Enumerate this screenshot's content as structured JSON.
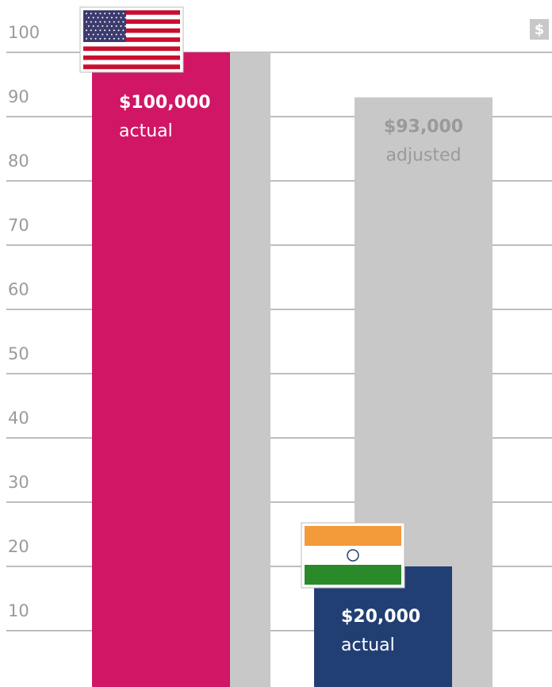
{
  "chart_data": {
    "type": "bar",
    "icon": "$",
    "categories": [
      null,
      null
    ],
    "series": [
      {
        "name": "adjusted",
        "color": "#c8c8c8",
        "values": [
          100,
          93
        ],
        "value_labels": [
          null,
          "$93,000"
        ],
        "label_color": "#9a9a9a"
      },
      {
        "name": "actual",
        "colors": [
          "#d01664",
          "#223f74"
        ],
        "values": [
          100,
          20
        ],
        "value_labels": [
          "$100,000",
          "$20,000"
        ],
        "label_color": "#ffffff"
      }
    ],
    "ylim": [
      0,
      100
    ],
    "yticks": [
      10,
      20,
      30,
      40,
      50,
      60,
      70,
      80,
      90,
      100
    ],
    "grid": true
  }
}
